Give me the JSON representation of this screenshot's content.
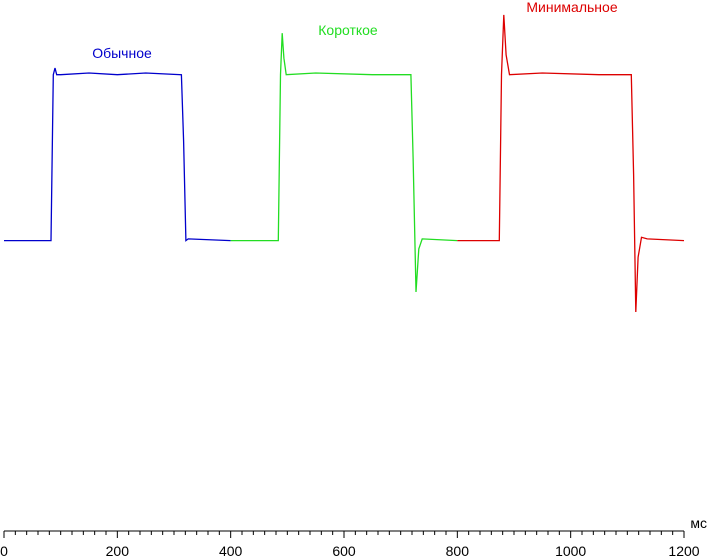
{
  "chart_data": {
    "type": "line",
    "x_label": "мс",
    "xlim": [
      0,
      1200
    ],
    "xticks": [
      0,
      200,
      400,
      600,
      800,
      1000,
      1200
    ],
    "xminorticks": [
      20,
      40,
      60,
      80,
      100,
      120,
      140,
      160,
      180,
      220,
      240,
      260,
      280,
      300,
      320,
      340,
      360,
      380,
      420,
      440,
      460,
      480,
      500,
      520,
      540,
      560,
      580,
      620,
      640,
      660,
      680,
      700,
      720,
      740,
      760,
      780,
      820,
      840,
      860,
      880,
      900,
      920,
      940,
      960,
      980,
      1020,
      1040,
      1060,
      1080,
      1100,
      1120,
      1140,
      1160,
      1180
    ],
    "ylim": [
      -175,
      145
    ],
    "series": [
      {
        "name": "Обычное",
        "color": "#0000cc",
        "x": [
          0,
          83,
          87,
          90,
          93,
          100,
          150,
          200,
          250,
          313,
          317,
          321,
          325,
          400
        ],
        "values": [
          0,
          0,
          100,
          104,
          100,
          100,
          101,
          100,
          101,
          100,
          60,
          0,
          1,
          0
        ]
      },
      {
        "name": "Короткое",
        "color": "#22dd22",
        "x": [
          400,
          484,
          488,
          491,
          494,
          498,
          550,
          650,
          718,
          722,
          727,
          732,
          738,
          800
        ],
        "values": [
          0,
          0,
          100,
          125,
          110,
          100,
          101,
          100,
          100,
          50,
          -31,
          -5,
          1,
          0
        ]
      },
      {
        "name": "Минимальное",
        "color": "#dd0000",
        "x": [
          800,
          874,
          878,
          882,
          886,
          892,
          950,
          1050,
          1107,
          1111,
          1115,
          1119,
          1125,
          1135,
          1200
        ],
        "values": [
          0,
          0,
          100,
          136,
          112,
          100,
          101,
          100,
          100,
          40,
          -43,
          -10,
          2,
          1,
          0
        ]
      }
    ]
  }
}
